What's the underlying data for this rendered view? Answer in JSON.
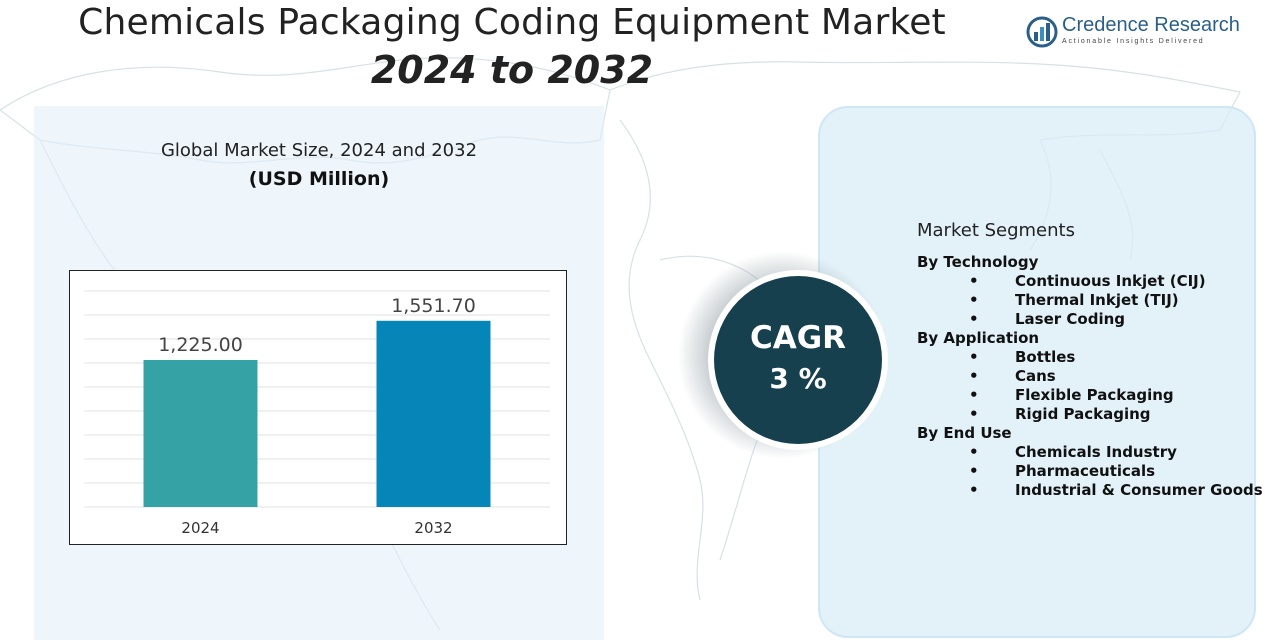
{
  "header": {
    "title": "Chemicals Packaging Coding Equipment Market",
    "subtitle": "2024 to 2032"
  },
  "logo": {
    "name": "Credence Research",
    "tagline": "Actionable Insights Delivered"
  },
  "chart_data": {
    "type": "bar",
    "title": "Global Market Size, 2024 and 2032",
    "unit": "(USD Million)",
    "categories": [
      "2024",
      "2032"
    ],
    "values": [
      1225.0,
      1551.7
    ],
    "value_labels": [
      "1,225.00",
      "1,551.70"
    ],
    "colors": [
      "#35a3a5",
      "#0585b8"
    ],
    "ylim": [
      0,
      1800
    ],
    "grid": true,
    "xlabel": "",
    "ylabel": ""
  },
  "cagr": {
    "label": "CAGR",
    "value": "3 %"
  },
  "segments": {
    "title": "Market Segments",
    "groups": [
      {
        "name": "By Technology",
        "items": [
          "Continuous Inkjet (CIJ)",
          "Thermal Inkjet (TIJ)",
          "Laser Coding"
        ]
      },
      {
        "name": "By Application",
        "items": [
          "Bottles",
          "Cans",
          "Flexible Packaging",
          "Rigid Packaging"
        ]
      },
      {
        "name": "By End Use",
        "items": [
          "Chemicals Industry",
          "Pharmaceuticals",
          "Industrial & Consumer Goods"
        ]
      }
    ]
  },
  "colors": {
    "panel_left": "#e2eff8",
    "panel_right": "#dbecf7",
    "cagr_circle": "#17404f"
  }
}
